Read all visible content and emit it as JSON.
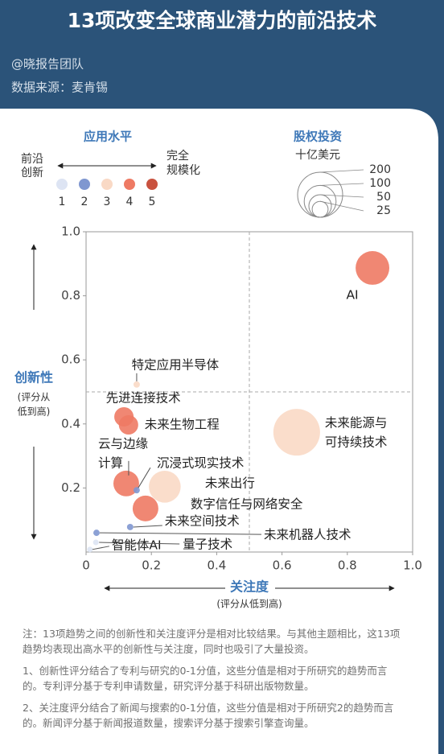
{
  "header": {
    "title": "13项改变全球商业潜力的前沿技术",
    "author": "@晓报告团队",
    "source": "数据来源：麦肯锡"
  },
  "chart_data": {
    "type": "bubble",
    "y_label": "创新性",
    "y_label_note": [
      "(评分从",
      "低到高)"
    ],
    "x_label": "关注度",
    "x_label_note": "(评分从低到高)",
    "categories": [
      [
        "AI"
      ],
      [
        "特定应用半导体"
      ],
      [
        "先进连接技术"
      ],
      [
        "未来生物工程"
      ],
      [
        "未来能源与",
        "可持续技术"
      ],
      [
        "云与边缘",
        "计算"
      ],
      [
        "沉浸式现实技术"
      ],
      [
        "未来出行"
      ],
      [
        "数字信任与网络安全"
      ],
      [
        "未来空间技术"
      ],
      [
        "未来机器人技术"
      ],
      [
        "智能体AI"
      ],
      [
        "量子技术"
      ]
    ],
    "x": [
      0.877,
      0.155,
      0.116,
      0.13,
      0.645,
      0.123,
      0.155,
      0.241,
      0.182,
      0.135,
      0.032,
      0.012,
      0.03
    ],
    "values": [
      0.887,
      0.523,
      0.422,
      0.397,
      0.374,
      0.214,
      0.193,
      0.204,
      0.136,
      0.078,
      0.06,
      0.008,
      0.03
    ],
    "sizes": [
      112,
      4,
      37,
      37,
      215,
      65,
      4,
      100,
      65,
      4,
      4,
      1,
      1
    ],
    "levels": [
      4,
      3,
      4,
      4,
      3,
      4,
      2,
      3,
      4,
      2,
      2,
      1,
      1
    ],
    "xlim": [
      0,
      1
    ],
    "ylim": [
      0,
      1
    ],
    "xticks": [
      0,
      0.2,
      0.4,
      0.6,
      0.8,
      {
        "value": 1,
        "label": "1.0"
      }
    ],
    "yticks": [
      0.2,
      0.4,
      0.6,
      0.8,
      {
        "value": 1,
        "label": "1.0"
      }
    ],
    "x_divider": 0.5,
    "y_divider": 0.5,
    "level_legend": {
      "title": "应用水平",
      "low": [
        "前沿",
        "创新"
      ],
      "high": [
        "完全",
        "规模化"
      ],
      "levels": [
        1,
        2,
        3,
        4,
        5
      ],
      "colors": [
        "#dde4f3",
        "#7f97d0",
        "#f9d9c5",
        "#ee7a64",
        "#c9523f"
      ]
    },
    "size_legend": {
      "title": "股权投资",
      "unit": "十亿美元",
      "values": [
        200,
        100,
        50,
        25
      ]
    }
  },
  "notes": [
    "注：13项趋势之间的创新性和关注度评分是相对比较结果。与其他主题相比，这13项趋势均表现出高水平的创新性与关注度，同时也吸引了大量投资。",
    "1、创新性评分结合了专利与研究的0-1分值，这些分值是相对于所研究的趋势而言的。专利评分基于专利申请数量，研究评分基于科研出版物数量。",
    "2、关注度评分结合了新闻与搜索的0-1分值，这些分值是相对于所研究2的趋势而言的。新闻评分基于新闻报道数量，搜索评分基于搜索引擎查询量。"
  ]
}
